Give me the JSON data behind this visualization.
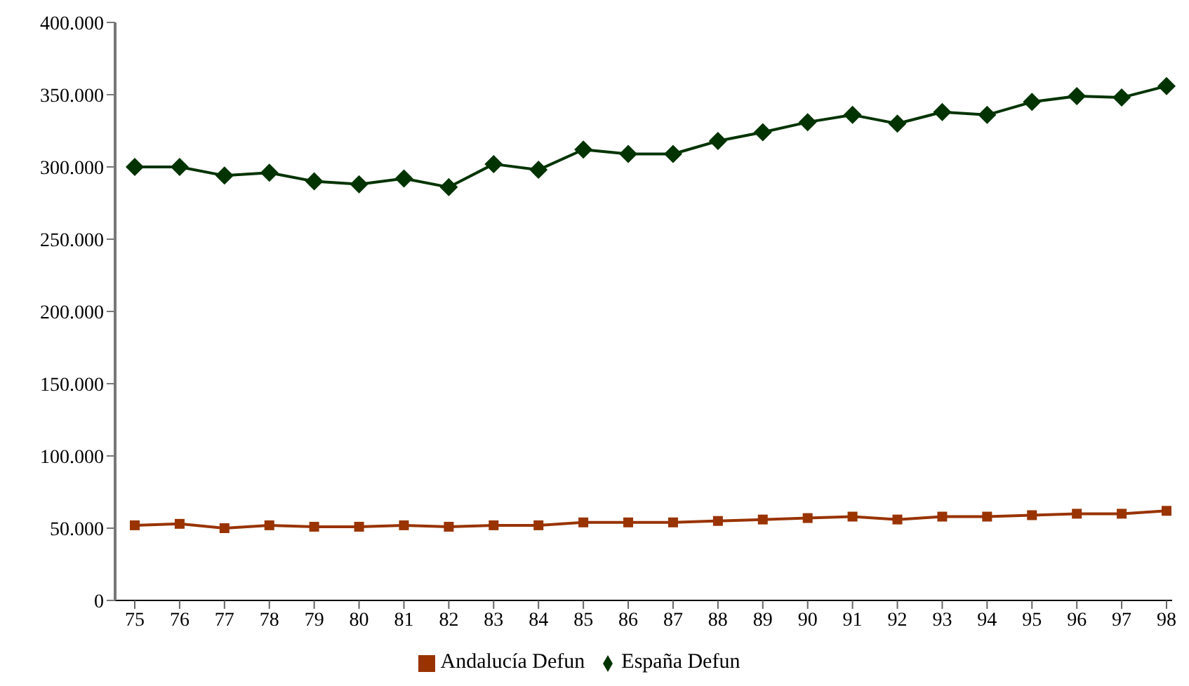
{
  "chart_data": {
    "type": "line",
    "categories": [
      "75",
      "76",
      "77",
      "78",
      "79",
      "80",
      "81",
      "82",
      "83",
      "84",
      "85",
      "86",
      "87",
      "88",
      "89",
      "90",
      "91",
      "92",
      "93",
      "94",
      "95",
      "96",
      "97",
      "98"
    ],
    "series": [
      {
        "name": "Andalucía Defun",
        "color": "#993300",
        "marker": "square",
        "values": [
          52000,
          53000,
          50000,
          52000,
          51000,
          51000,
          52000,
          51000,
          52000,
          52000,
          54000,
          54000,
          54000,
          55000,
          56000,
          57000,
          58000,
          56000,
          58000,
          58000,
          59000,
          60000,
          60000,
          62000
        ]
      },
      {
        "name": "España Defun",
        "color": "#003300",
        "marker": "diamond",
        "values": [
          300000,
          300000,
          294000,
          296000,
          290000,
          288000,
          292000,
          286000,
          302000,
          298000,
          312000,
          309000,
          309000,
          318000,
          324000,
          331000,
          336000,
          330000,
          338000,
          336000,
          345000,
          349000,
          348000,
          356000
        ]
      }
    ],
    "ylim": [
      0,
      400000
    ],
    "yticks": [
      {
        "value": 0,
        "label": "0"
      },
      {
        "value": 50000,
        "label": "50.000"
      },
      {
        "value": 100000,
        "label": "100.000"
      },
      {
        "value": 150000,
        "label": "150.000"
      },
      {
        "value": 200000,
        "label": "200.000"
      },
      {
        "value": 250000,
        "label": "250.000"
      },
      {
        "value": 300000,
        "label": "300.000"
      },
      {
        "value": 350000,
        "label": "350.000"
      },
      {
        "value": 400000,
        "label": "400.000"
      }
    ],
    "grid": false,
    "legend": "bottom"
  }
}
